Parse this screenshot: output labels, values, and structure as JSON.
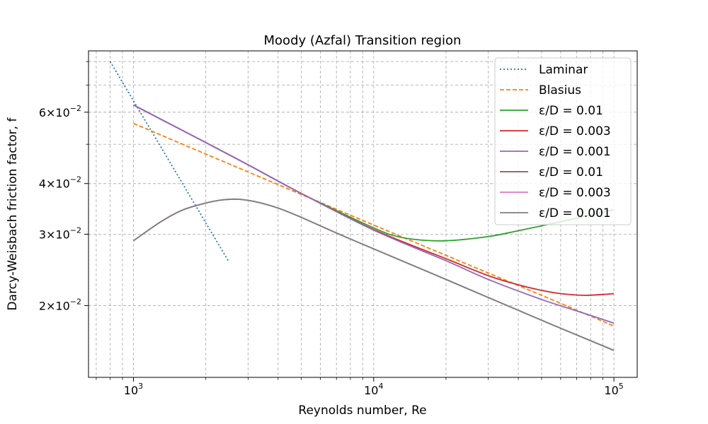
{
  "chart_data": {
    "type": "line",
    "title": "Moody (Azfal) Transition region",
    "xlabel": "Reynolds number, Re",
    "ylabel": "Darcy-Weisbach friction factor, f",
    "xscale": "log",
    "yscale": "log",
    "xlim": [
      650,
      125000
    ],
    "ylim": [
      0.0133,
      0.085
    ],
    "grid": true,
    "legend_position": "top-right",
    "x_ticks": [
      {
        "value": 1000,
        "base": "10",
        "exp": "3"
      },
      {
        "value": 10000,
        "base": "10",
        "exp": "4"
      },
      {
        "value": 100000,
        "base": "10",
        "exp": "5"
      }
    ],
    "y_ticks": [
      {
        "value": 0.02,
        "mantissa": "2",
        "base": "10",
        "exp": "−2"
      },
      {
        "value": 0.03,
        "mantissa": "3",
        "base": "10",
        "exp": "−2"
      },
      {
        "value": 0.04,
        "mantissa": "4",
        "base": "10",
        "exp": "−2"
      },
      {
        "value": 0.06,
        "mantissa": "6",
        "base": "10",
        "exp": "−2"
      }
    ],
    "series": [
      {
        "name": "Laminar",
        "color": "#1f77b4",
        "style": "dotted",
        "x": [
          800,
          1000,
          1500,
          2000,
          2500
        ],
        "y": [
          0.08,
          0.064,
          0.0427,
          0.032,
          0.0256
        ]
      },
      {
        "name": "Blasius",
        "color": "#ff7f0e",
        "style": "dashed",
        "x": [
          1000,
          2000,
          5000,
          10000,
          20000,
          50000,
          100000
        ],
        "y": [
          0.0563,
          0.0473,
          0.0376,
          0.0316,
          0.0266,
          0.0212,
          0.0178
        ]
      },
      {
        "name": "ε/D = 0.01",
        "color": "#2ca02c",
        "style": "solid",
        "x": [
          1000,
          2000,
          3000,
          5000,
          7000,
          10000,
          12000,
          15000,
          20000,
          30000,
          40000,
          60000,
          100000
        ],
        "y": [
          0.0625,
          0.0505,
          0.0445,
          0.0378,
          0.0343,
          0.0311,
          0.0298,
          0.0291,
          0.0289,
          0.0296,
          0.0306,
          0.0322,
          0.0345
        ]
      },
      {
        "name": "ε/D = 0.003",
        "color": "#d62728",
        "style": "solid",
        "x": [
          1000,
          2000,
          3000,
          5000,
          10000,
          20000,
          30000,
          40000,
          50000,
          60000,
          75000,
          90000,
          100000
        ],
        "y": [
          0.0625,
          0.0505,
          0.0445,
          0.0378,
          0.0308,
          0.0261,
          0.0237,
          0.0225,
          0.0218,
          0.0214,
          0.0212,
          0.0213,
          0.0214
        ]
      },
      {
        "name": "ε/D = 0.001",
        "color": "#9467bd",
        "style": "solid",
        "x": [
          1000,
          2000,
          3000,
          5000,
          10000,
          20000,
          30000,
          50000,
          70000,
          100000
        ],
        "y": [
          0.0625,
          0.0505,
          0.0445,
          0.0378,
          0.0307,
          0.0258,
          0.0232,
          0.0207,
          0.0194,
          0.0181
        ]
      },
      {
        "name": "ε/D = 0.01",
        "color": "#8c564b",
        "style": "solid",
        "x": [
          1000,
          1300,
          1600,
          2000,
          2300,
          2700,
          3200,
          4000,
          5000,
          7000,
          10000,
          20000,
          50000,
          100000
        ],
        "y": [
          0.0289,
          0.0322,
          0.0344,
          0.0358,
          0.0364,
          0.0366,
          0.0361,
          0.0348,
          0.033,
          0.0302,
          0.0276,
          0.0232,
          0.0184,
          0.0155
        ]
      },
      {
        "name": "ε/D = 0.003",
        "color": "#e377c2",
        "style": "solid",
        "x": [
          1000,
          1300,
          1600,
          2000,
          2300,
          2700,
          3200,
          4000,
          5000,
          7000,
          10000,
          20000,
          50000,
          100000
        ],
        "y": [
          0.0289,
          0.0322,
          0.0344,
          0.0358,
          0.0364,
          0.0366,
          0.0361,
          0.0348,
          0.033,
          0.0302,
          0.0276,
          0.0232,
          0.0184,
          0.0155
        ]
      },
      {
        "name": "ε/D = 0.001",
        "color": "#7f7f7f",
        "style": "solid",
        "x": [
          1000,
          1300,
          1600,
          2000,
          2300,
          2700,
          3200,
          4000,
          5000,
          7000,
          10000,
          20000,
          50000,
          100000
        ],
        "y": [
          0.0289,
          0.0322,
          0.0344,
          0.0358,
          0.0364,
          0.0366,
          0.0361,
          0.0348,
          0.033,
          0.0302,
          0.0276,
          0.0232,
          0.0184,
          0.0155
        ]
      }
    ]
  }
}
